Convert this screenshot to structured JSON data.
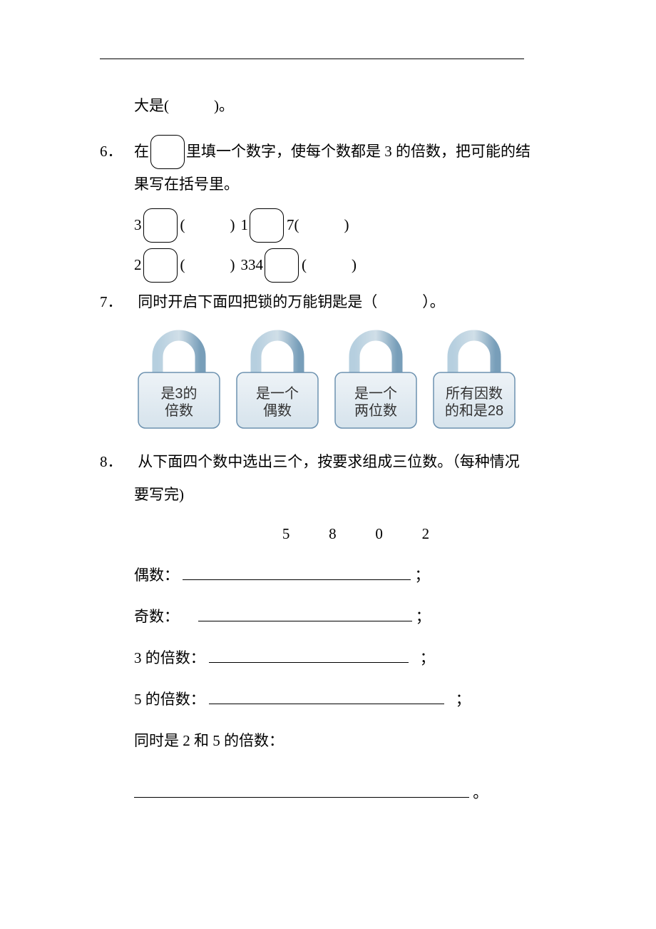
{
  "colors": {
    "text": "#000000",
    "page_bg": "#ffffff",
    "lock_body_fill": "#d6e3ec",
    "lock_body_stroke": "#6d92b0",
    "lock_shackle_light": "#cfe3ef",
    "lock_shackle_dark": "#7ca2bd",
    "lock_label_text": "#333333"
  },
  "typography": {
    "body_font": "SimSun / 宋体",
    "body_size_pt": 16,
    "lock_label_font": "Microsoft YaHei / SimHei",
    "lock_label_size_pt": 15
  },
  "fragment_top": {
    "text": "大是(　　　)。"
  },
  "q6": {
    "number": "6．",
    "prompt_before_box": "在",
    "prompt_after_box": "里填一个数字，使每个数都是 3 的倍数，把可能的结",
    "prompt_line2": "果写在括号里。",
    "row1": {
      "a_before": "3",
      "a_paren": "(　　　)",
      "b_before": "1",
      "b_after": "7(　　　)"
    },
    "row2": {
      "a_before": "2",
      "a_paren": "(　　　)",
      "b_before": "334",
      "b_paren": "(　　　)"
    }
  },
  "q7": {
    "number": "7．",
    "prompt": "同时开启下面四把锁的万能钥匙是（　　　）。",
    "locks": [
      {
        "label_line1": "是3的",
        "label_line2": "倍数"
      },
      {
        "label_line1": "是一个",
        "label_line2": "偶数"
      },
      {
        "label_line1": "是一个",
        "label_line2": "两位数"
      },
      {
        "label_line1": "所有因数",
        "label_line2": "的和是28"
      }
    ]
  },
  "q8": {
    "number": "8．",
    "prompt_a": "从下面四个数中选出三个，按要求组成三位数。（每种情况",
    "prompt_b": "要写完)",
    "digits": [
      "5",
      "8",
      "0",
      "2"
    ],
    "lines": {
      "even": "偶数：",
      "odd": "奇数：",
      "mult3": "3 的倍数：",
      "mult5": "5 的倍数：",
      "both25": "同时是 2 和 5 的倍数："
    },
    "semicolon": "；",
    "period": "。"
  }
}
